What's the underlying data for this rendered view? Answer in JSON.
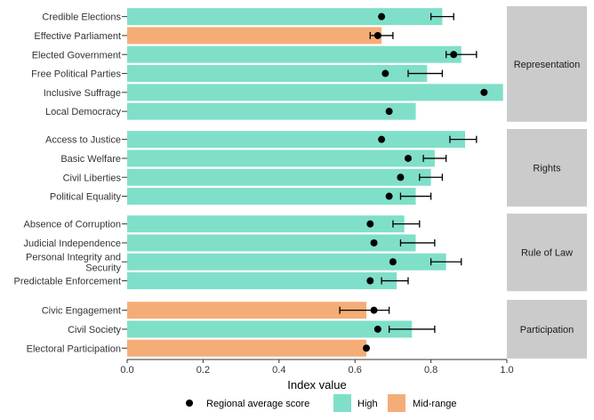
{
  "chart_data": {
    "type": "bar",
    "orientation": "horizontal",
    "facet": "panels",
    "xlabel": "Index value",
    "xlim": [
      0,
      1
    ],
    "xticks": [
      0.0,
      0.2,
      0.4,
      0.6,
      0.8,
      1.0
    ],
    "xtick_labels": [
      "0.0",
      "0.2",
      "0.4",
      "0.6",
      "0.8",
      "1.0"
    ],
    "grid": false,
    "legend": {
      "placement": "bottom",
      "items": [
        {
          "label": "Regional average score",
          "kind": "point"
        },
        {
          "label": "High",
          "kind": "fill"
        },
        {
          "label": "Mid-range",
          "kind": "fill"
        }
      ]
    },
    "colors": {
      "High": "#80dfc9",
      "Mid-range": "#f5ad77",
      "point": "#000000",
      "strip": "#cbcbcb"
    },
    "panels": [
      {
        "name": "Representation",
        "rows": [
          {
            "label": "Credible Elections",
            "value": 0.83,
            "level": "High",
            "avg": 0.67,
            "err": [
              0.8,
              0.86
            ]
          },
          {
            "label": "Effective Parliament",
            "value": 0.67,
            "level": "Mid-range",
            "avg": 0.66,
            "err": [
              0.64,
              0.7
            ]
          },
          {
            "label": "Elected Government",
            "value": 0.88,
            "level": "High",
            "avg": 0.86,
            "err": [
              0.84,
              0.92
            ]
          },
          {
            "label": "Free Political Parties",
            "value": 0.79,
            "level": "High",
            "avg": 0.68,
            "err": [
              0.74,
              0.83
            ]
          },
          {
            "label": "Inclusive Suffrage",
            "value": 0.99,
            "level": "High",
            "avg": 0.94,
            "err": null
          },
          {
            "label": "Local Democracy",
            "value": 0.76,
            "level": "High",
            "avg": 0.69,
            "err": null
          }
        ]
      },
      {
        "name": "Rights",
        "rows": [
          {
            "label": "Access to Justice",
            "value": 0.89,
            "level": "High",
            "avg": 0.67,
            "err": [
              0.85,
              0.92
            ]
          },
          {
            "label": "Basic Welfare",
            "value": 0.81,
            "level": "High",
            "avg": 0.74,
            "err": [
              0.78,
              0.84
            ]
          },
          {
            "label": "Civil Liberties",
            "value": 0.8,
            "level": "High",
            "avg": 0.72,
            "err": [
              0.77,
              0.83
            ]
          },
          {
            "label": "Political Equality",
            "value": 0.76,
            "level": "High",
            "avg": 0.69,
            "err": [
              0.72,
              0.8
            ]
          }
        ]
      },
      {
        "name": "Rule of Law",
        "rows": [
          {
            "label": "Absence of Corruption",
            "value": 0.73,
            "level": "High",
            "avg": 0.64,
            "err": [
              0.7,
              0.77
            ]
          },
          {
            "label": "Judicial Independence",
            "value": 0.76,
            "level": "High",
            "avg": 0.65,
            "err": [
              0.72,
              0.81
            ]
          },
          {
            "label": "Personal Integrity and\nSecurity",
            "value": 0.84,
            "level": "High",
            "avg": 0.7,
            "err": [
              0.8,
              0.88
            ]
          },
          {
            "label": "Predictable Enforcement",
            "value": 0.71,
            "level": "High",
            "avg": 0.64,
            "err": [
              0.67,
              0.74
            ]
          }
        ]
      },
      {
        "name": "Participation",
        "rows": [
          {
            "label": "Civic Engagement",
            "value": 0.63,
            "level": "Mid-range",
            "avg": 0.65,
            "err": [
              0.56,
              0.69
            ]
          },
          {
            "label": "Civil Society",
            "value": 0.75,
            "level": "High",
            "avg": 0.66,
            "err": [
              0.69,
              0.81
            ]
          },
          {
            "label": "Electoral Participation",
            "value": 0.63,
            "level": "Mid-range",
            "avg": 0.63,
            "err": null
          }
        ]
      }
    ]
  }
}
